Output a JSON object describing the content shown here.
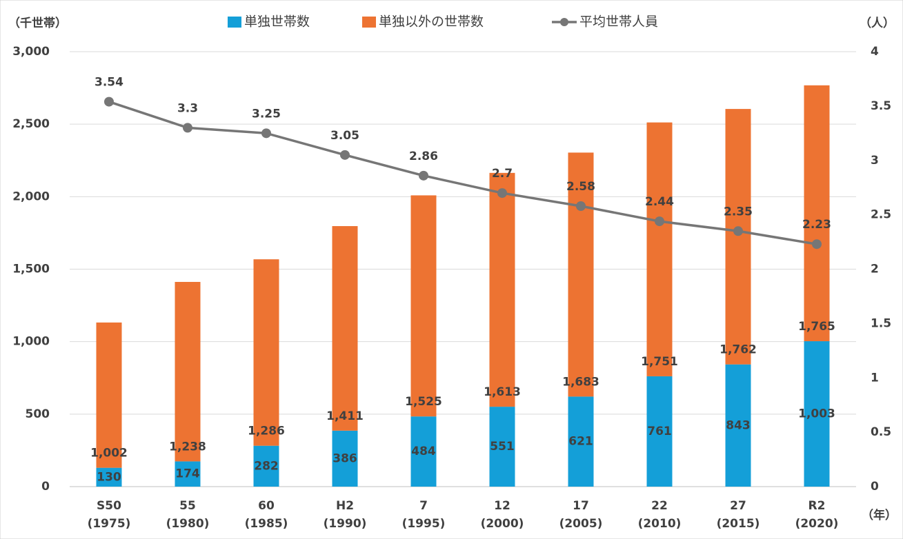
{
  "chart_data": {
    "type": "bar-line",
    "y_axis_label": "（千世帯）",
    "y2_axis_label": "（人）",
    "x_axis_label": "（年）",
    "categories": [
      [
        "S50",
        "(1975)"
      ],
      [
        "55",
        "(1980)"
      ],
      [
        "60",
        "(1985)"
      ],
      [
        "H2",
        "(1990)"
      ],
      [
        "7",
        "(1995)"
      ],
      [
        "12",
        "(2000)"
      ],
      [
        "17",
        "(2005)"
      ],
      [
        "22",
        "(2010)"
      ],
      [
        "27",
        "(2015)"
      ],
      [
        "R2",
        "(2020)"
      ]
    ],
    "series": [
      {
        "name": "単独世帯数",
        "type": "bar",
        "color": "#149fd8",
        "values": [
          130,
          174,
          282,
          386,
          484,
          551,
          621,
          761,
          843,
          1003
        ],
        "value_labels": [
          "130",
          "174",
          "282",
          "386",
          "484",
          "551",
          "621",
          "761",
          "843",
          "1,003"
        ]
      },
      {
        "name": "単独以外の世帯数",
        "type": "bar",
        "color": "#ed7332",
        "values": [
          1002,
          1238,
          1286,
          1411,
          1525,
          1613,
          1683,
          1751,
          1762,
          1765
        ],
        "value_labels": [
          "1,002",
          "1,238",
          "1,286",
          "1,411",
          "1,525",
          "1,613",
          "1,683",
          "1,751",
          "1,762",
          "1,765"
        ]
      },
      {
        "name": "平均世帯人員",
        "type": "line",
        "axis": "y2",
        "color": "#767676",
        "values": [
          3.54,
          3.3,
          3.25,
          3.05,
          2.86,
          2.7,
          2.58,
          2.44,
          2.35,
          2.23
        ]
      }
    ],
    "stacked": true,
    "ylim": [
      0,
      3000
    ],
    "yticks": [
      0,
      500,
      {
        "value": 1000,
        "label": "1,000"
      },
      {
        "value": 1500,
        "label": "1,500"
      },
      {
        "value": 2000,
        "label": "2,000"
      },
      {
        "value": 2500,
        "label": "2,500"
      },
      {
        "value": 3000,
        "label": "3,000"
      }
    ],
    "y2lim": [
      0,
      4
    ],
    "y2ticks": [
      0,
      0.5,
      1,
      1.5,
      2,
      2.5,
      3,
      3.5,
      4
    ],
    "grid": true
  }
}
